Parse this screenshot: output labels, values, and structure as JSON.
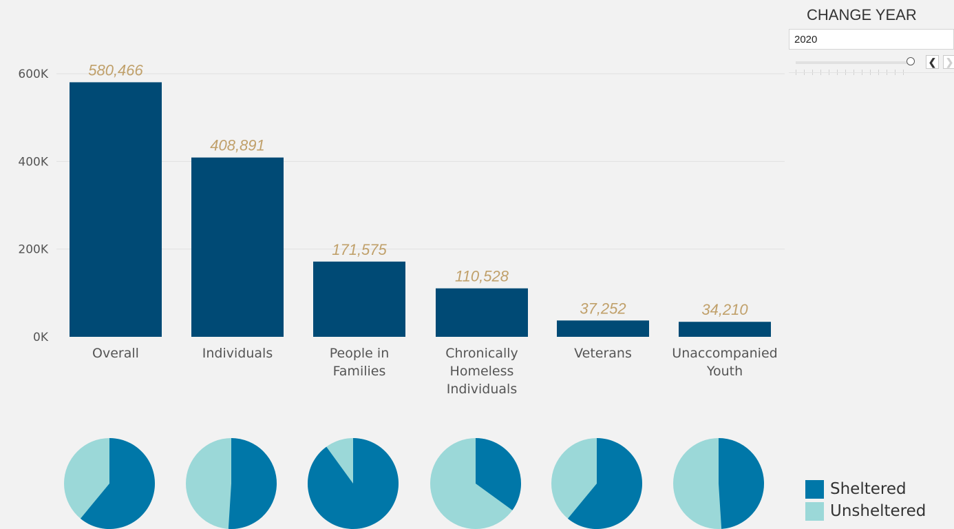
{
  "year_filter": {
    "title": "CHANGE YEAR",
    "selected": "2020"
  },
  "legend": {
    "sheltered": "Sheltered",
    "unsheltered": "Unsheltered"
  },
  "colors": {
    "bar": "#004a75",
    "sheltered": "#0077a8",
    "unsheltered": "#9bd8d8",
    "data_label": "#c0a06a",
    "grid": "#e0e0e0"
  },
  "chart_data": {
    "type": "bar",
    "categories": [
      "Overall",
      "Individuals",
      "People in Families",
      "Chronically Homeless Individuals",
      "Veterans",
      "Unaccompanied Youth"
    ],
    "values": [
      580466,
      408891,
      171575,
      110528,
      37252,
      34210
    ],
    "value_labels": [
      "580,466",
      "408,891",
      "171,575",
      "110,528",
      "37,252",
      "34,210"
    ],
    "ylim": [
      0,
      600000
    ],
    "yticks": [
      0,
      200000,
      400000,
      600000
    ],
    "ytick_labels": [
      "0K",
      "200K",
      "400K",
      "600K"
    ],
    "grid": true,
    "pies": {
      "type": "pie",
      "series": [
        "Sheltered",
        "Unsheltered"
      ],
      "sheltered_share": [
        0.61,
        0.51,
        0.9,
        0.35,
        0.61,
        0.49
      ]
    }
  }
}
